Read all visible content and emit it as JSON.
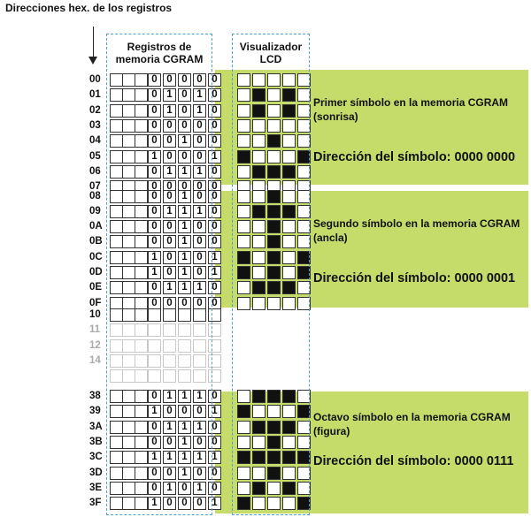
{
  "title": "Direcciones hex. de los registros",
  "columns": {
    "cgram": [
      "Registros de",
      "memoria CGRAM"
    ],
    "lcd": [
      "Visualizador",
      "LCD"
    ]
  },
  "symbols": [
    {
      "addresses": [
        "00",
        "01",
        "02",
        "03",
        "04",
        "05",
        "06",
        "07"
      ],
      "bits": [
        "00000",
        "01010",
        "01010",
        "00000",
        "00100",
        "10001",
        "01110",
        "00000"
      ],
      "caption_line1": "Primer símbolo en la memoria CGRAM",
      "caption_line2": "(sonrisa)",
      "address_label": "Dirección del símbolo: 0000 0000"
    },
    {
      "addresses": [
        "08",
        "09",
        "0A",
        "0B",
        "0C",
        "0D",
        "0E",
        "0F"
      ],
      "bits": [
        "00100",
        "01110",
        "00100",
        "00100",
        "10101",
        "10101",
        "01110",
        "00000"
      ],
      "caption_line1": "Segundo símbolo en la memoria CGRAM",
      "caption_line2": "(ancla)",
      "address_label": "Dirección del símbolo: 0000 0001"
    },
    {
      "addresses": [
        "38",
        "39",
        "3A",
        "3B",
        "3C",
        "3D",
        "3E",
        "3F"
      ],
      "bits": [
        "01110",
        "10001",
        "01110",
        "00100",
        "11111",
        "00100",
        "01010",
        "10001"
      ],
      "caption_line1": "Octavo símbolo en la memoria CGRAM",
      "caption_line2": "(figura)",
      "address_label": "Dirección del símbolo: 0000 0111"
    }
  ],
  "continuation_addresses": [
    "10",
    "11",
    "12",
    "14"
  ],
  "colors": {
    "band": "#c5dc6b",
    "dashed_frame": "#4aa3d4",
    "pixel_on": "#111111"
  }
}
